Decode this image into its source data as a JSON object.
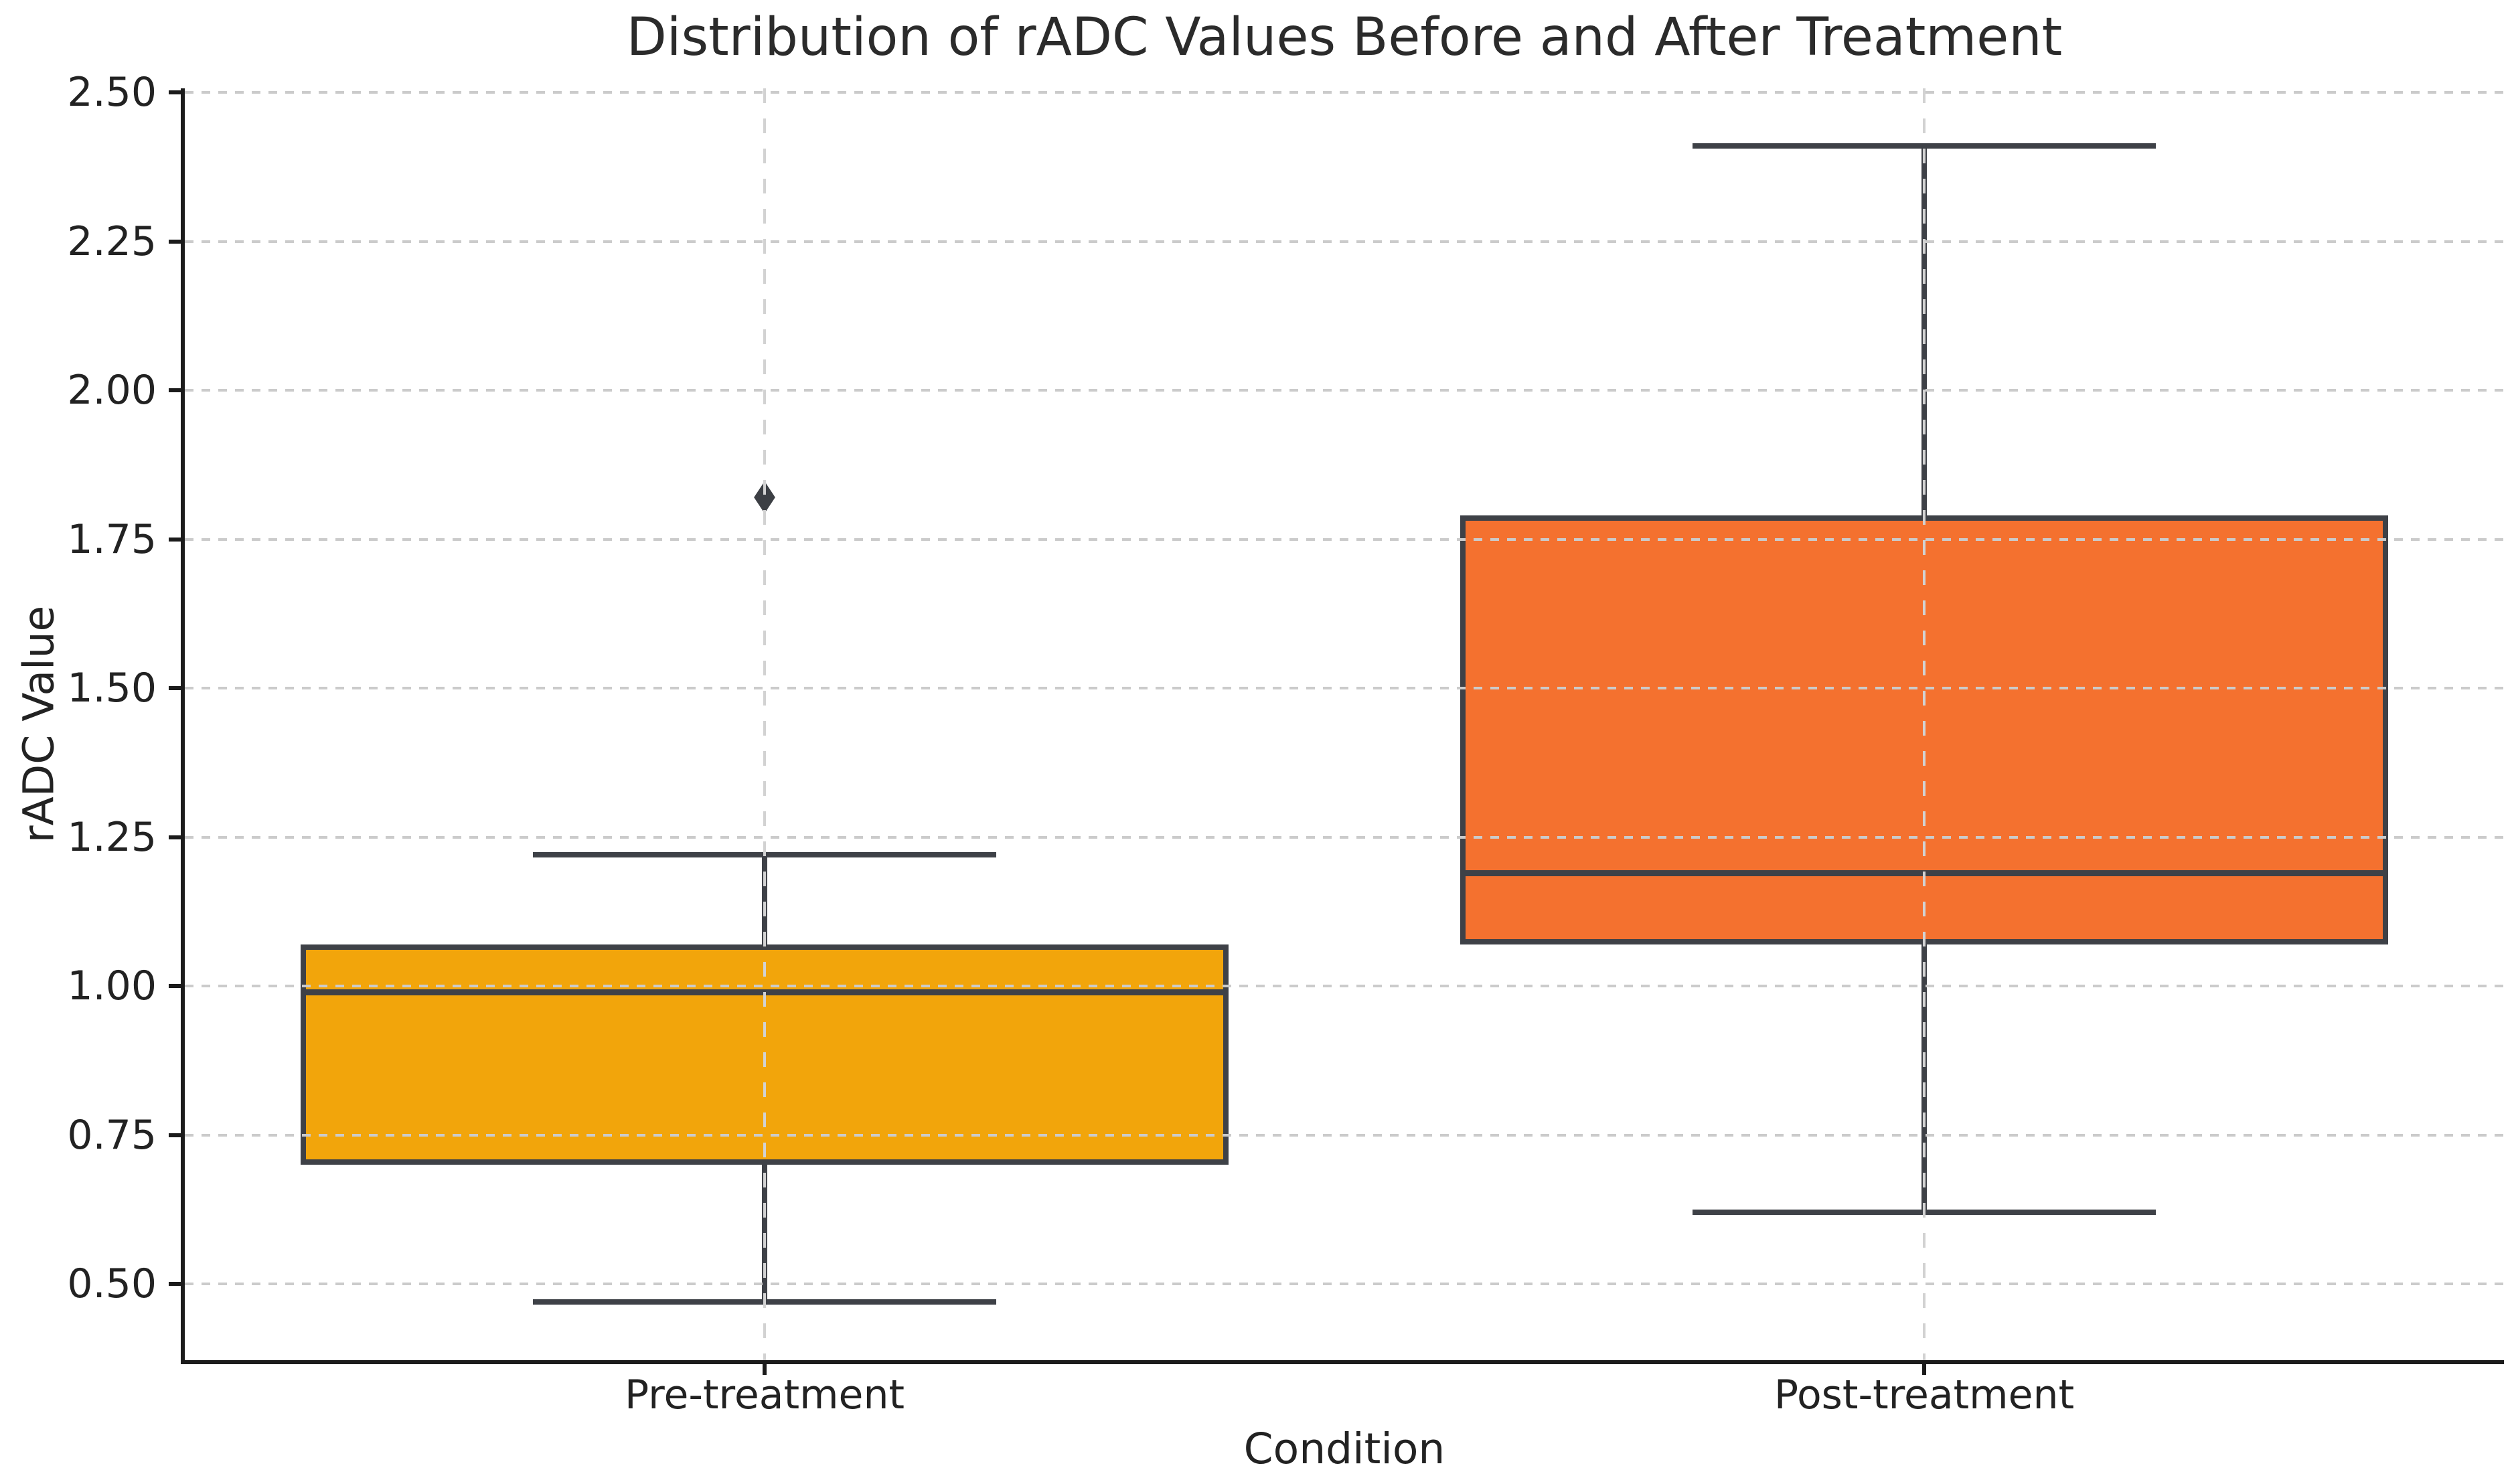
{
  "figure": {
    "title": "Distribution of rADC Values Before and After Treatment",
    "xlabel": "Condition",
    "ylabel": "rADC Value"
  },
  "chart_data": {
    "type": "boxplot",
    "title": "Distribution of rADC Values Before and After Treatment",
    "xlabel": "Condition",
    "ylabel": "rADC Value",
    "categories": [
      "Pre-treatment",
      "Post-treatment"
    ],
    "series": [
      {
        "name": "Pre-treatment",
        "whisker_low": 0.47,
        "q1": 0.7,
        "median": 0.99,
        "q3": 1.07,
        "whisker_high": 1.22,
        "outliers": [
          1.82
        ],
        "fill_color": "#F2A50B"
      },
      {
        "name": "Post-treatment",
        "whisker_low": 0.62,
        "q1": 1.07,
        "median": 1.19,
        "q3": 1.79,
        "whisker_high": 2.41,
        "outliers": [],
        "fill_color": "#F4712F"
      }
    ],
    "ylim": [
      0.372,
      2.507
    ],
    "yticks": [
      2.5,
      2.25,
      2.0,
      1.75,
      1.5,
      1.25,
      1.0,
      0.75,
      0.5
    ],
    "ytick_labels": [
      "2.50",
      "2.25",
      "2.00",
      "1.75",
      "1.50",
      "1.25",
      "1.00",
      "0.75",
      "0.50"
    ],
    "grid": true,
    "grid_style": "dashed",
    "legend": false,
    "outlier_marker": "thin-diamond",
    "colors": {
      "pre_fill": "#F2A50B",
      "post_fill": "#F4712F",
      "edge": "#3E4147",
      "grid": "#CBCBCB",
      "spine": "#1B1B1B",
      "text": "#222222",
      "background": "#FFFFFF"
    }
  }
}
